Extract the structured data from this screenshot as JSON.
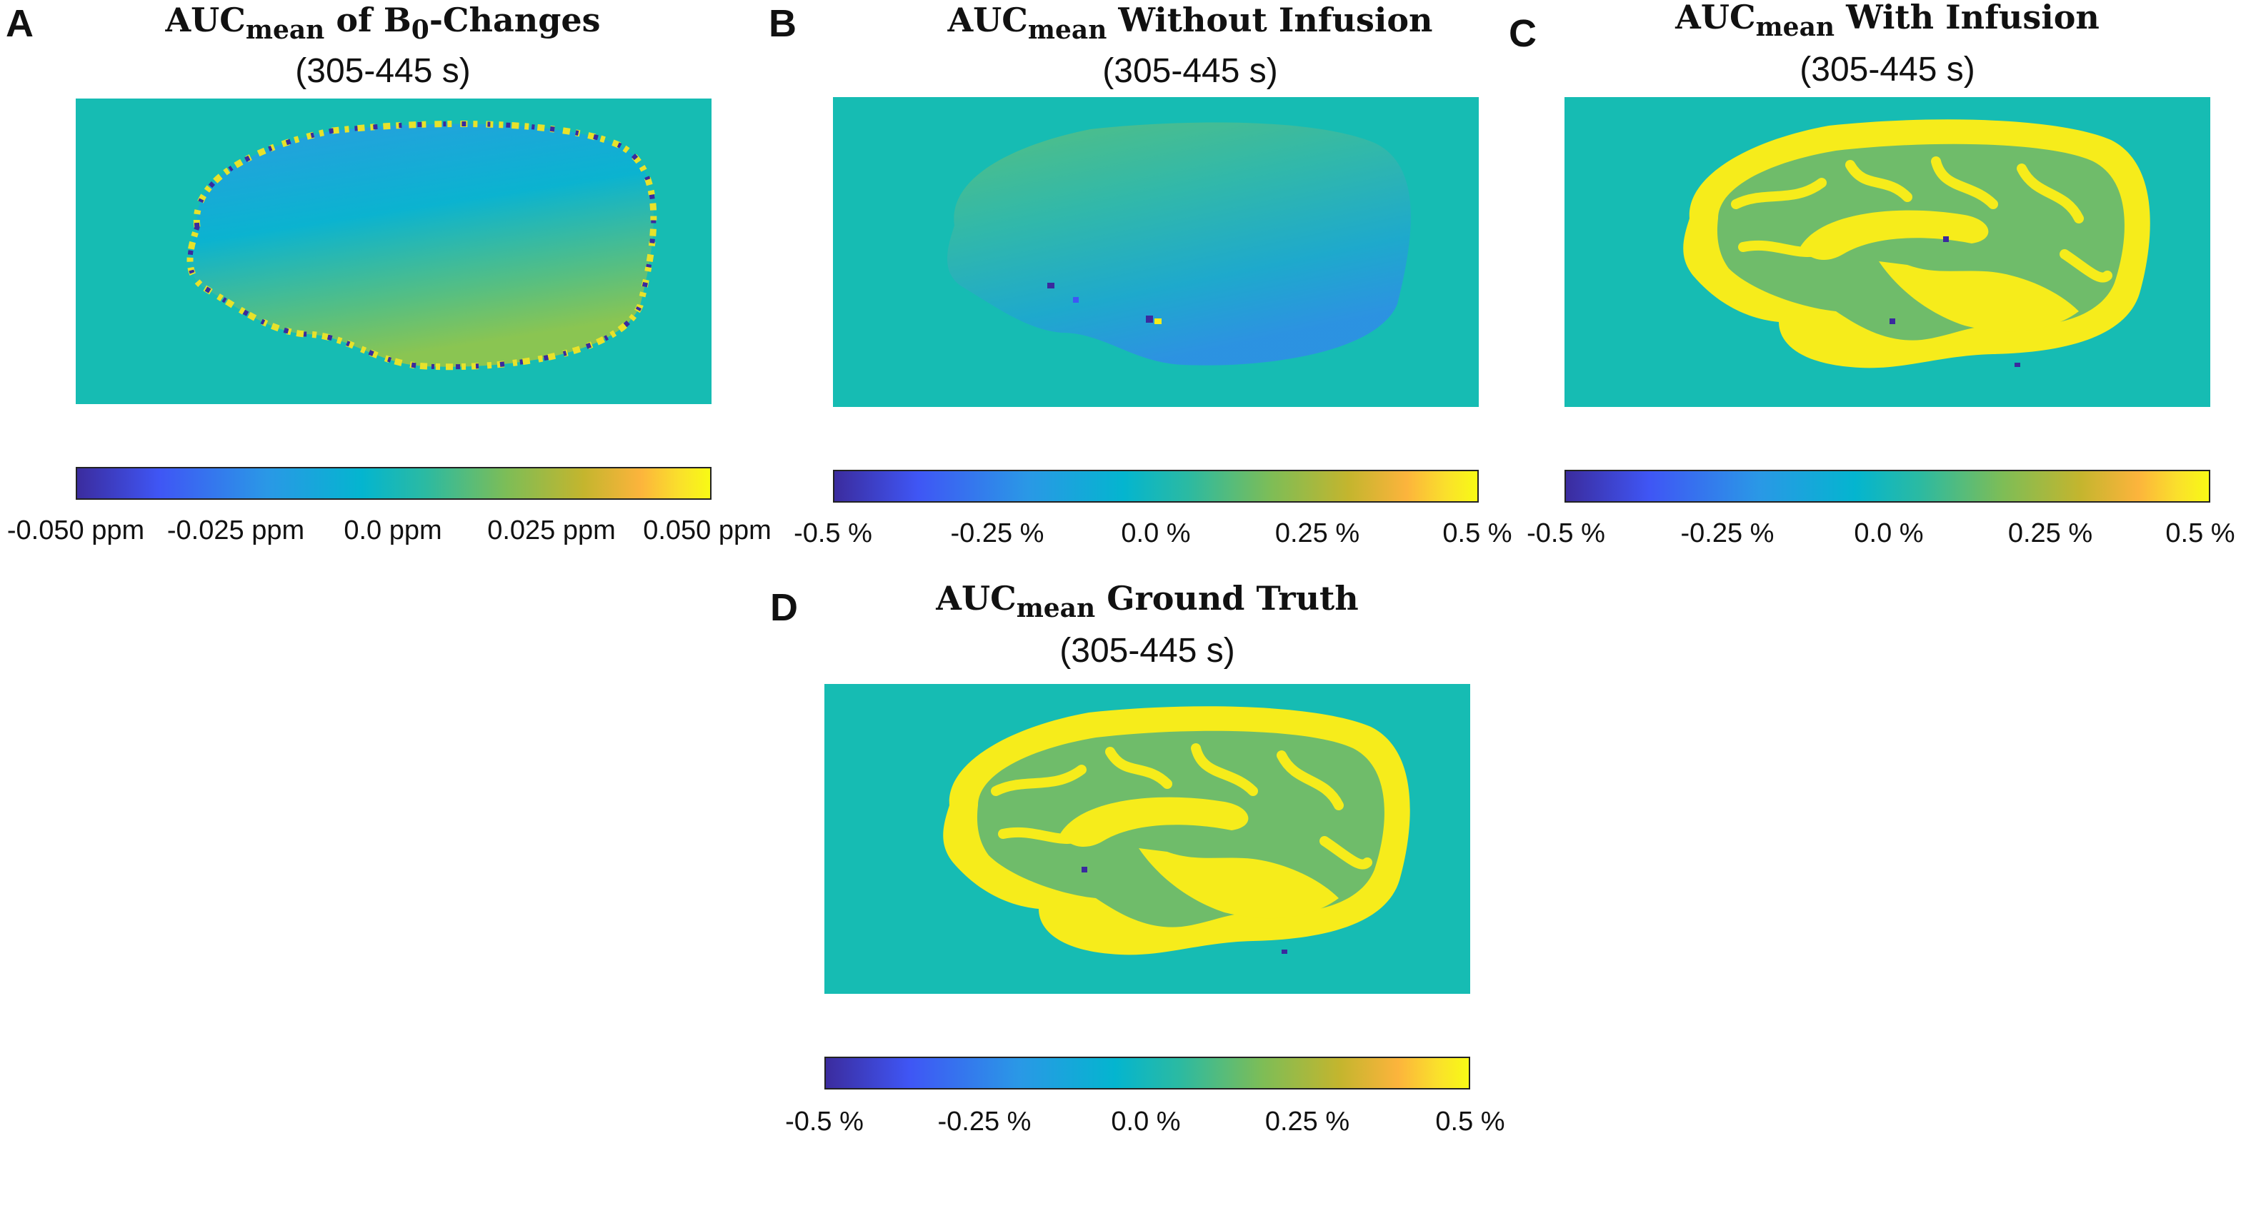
{
  "figure": {
    "colors": {
      "background": "#16bcb3",
      "brain_field": "#23a9d8",
      "bright": "#f6ec1b",
      "gray": "#53c09c",
      "dark": "#3a2a9e",
      "colormap": [
        "#3b2c9e",
        "#3f56f5",
        "#2a98e6",
        "#04b5cf",
        "#2bbaa2",
        "#7ebd56",
        "#c4b52e",
        "#fcb43c",
        "#fadf2c",
        "#f8fa15"
      ]
    },
    "panels": [
      {
        "letter": "A",
        "title_main": "AUC",
        "title_sub": "mean",
        "title_rest_1": " of B",
        "title_sub2": "0",
        "title_rest_2": "-Changes",
        "subtitle": "(305-445 s)",
        "colorbar_ticks": [
          "-0.050 ppm",
          "-0.025 ppm",
          "0.0 ppm",
          "0.025 ppm",
          "0.050 ppm"
        ]
      },
      {
        "letter": "B",
        "title_main": "AUC",
        "title_sub": "mean",
        "title_rest": " Without Infusion",
        "subtitle": "(305-445 s)",
        "colorbar_ticks": [
          "-0.5 %",
          "-0.25 %",
          "0.0 %",
          "0.25 %",
          "0.5 %"
        ]
      },
      {
        "letter": "C",
        "title_main": "AUC",
        "title_sub": "mean",
        "title_rest": " With Infusion",
        "subtitle": "(305-445 s)",
        "colorbar_ticks": [
          "-0.5 %",
          "-0.25 %",
          "0.0 %",
          "0.25 %",
          "0.5 %"
        ]
      },
      {
        "letter": "D",
        "title_main": "AUC",
        "title_sub": "mean",
        "title_rest": " Ground Truth",
        "subtitle": "(305-445 s)",
        "colorbar_ticks": [
          "-0.5 %",
          "-0.25 %",
          "0.0 %",
          "0.25 %",
          "0.5 %"
        ]
      }
    ]
  }
}
